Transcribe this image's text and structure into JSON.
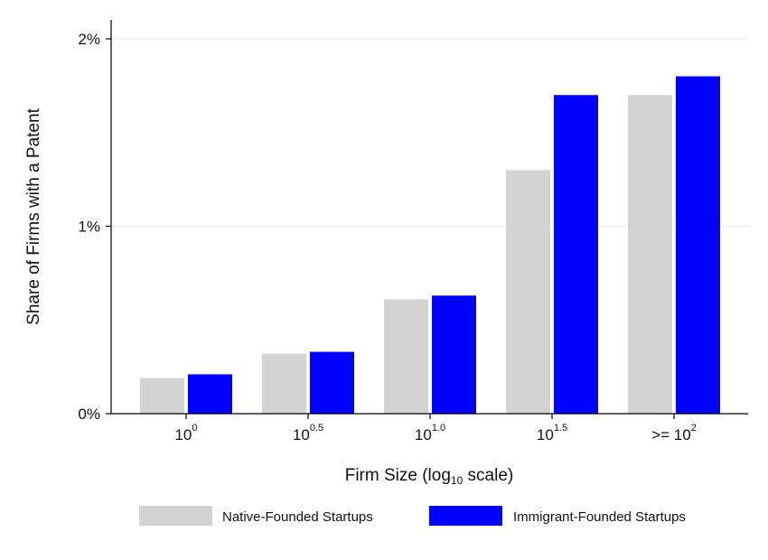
{
  "chart_data": {
    "type": "bar",
    "categories": [
      {
        "base": "10",
        "exp": "0",
        "prefix": ""
      },
      {
        "base": "10",
        "exp": "0.5",
        "prefix": ""
      },
      {
        "base": "10",
        "exp": "1.0",
        "prefix": ""
      },
      {
        "base": "10",
        "exp": "1.5",
        "prefix": ""
      },
      {
        "base": "10",
        "exp": "2",
        "prefix": ">= "
      }
    ],
    "series": [
      {
        "name": "Native-Founded Startups",
        "color": "#d3d3d3",
        "values": [
          0.19,
          0.32,
          0.61,
          1.3,
          1.7
        ]
      },
      {
        "name": "Immigrant-Founded Startups",
        "color": "#0000ff",
        "values": [
          0.21,
          0.33,
          0.63,
          1.7,
          1.8
        ]
      }
    ],
    "ylabel": "Share of Firms with a Patent",
    "xlabel": {
      "pre": "Firm Size (log",
      "sub": "10",
      "post": " scale)"
    },
    "yticks": [
      {
        "value": 0,
        "label": "0%"
      },
      {
        "value": 1,
        "label": "1%"
      },
      {
        "value": 2,
        "label": "2%"
      }
    ],
    "ylim": [
      0,
      2.1
    ],
    "grid": true,
    "legend": "bottom"
  }
}
